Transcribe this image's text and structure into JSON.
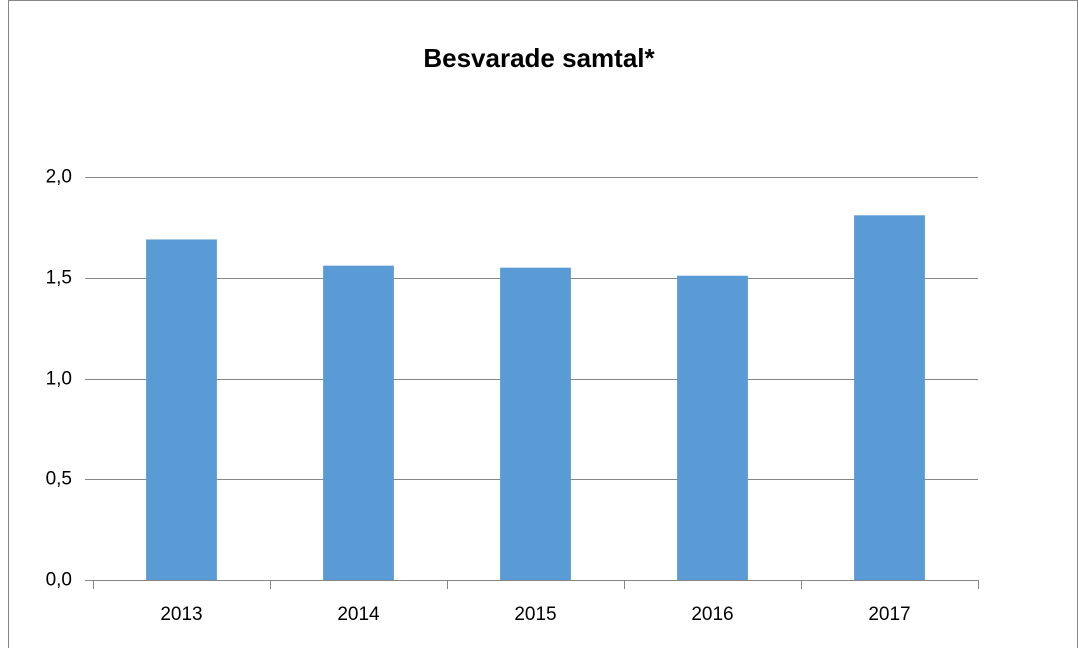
{
  "chart_data": {
    "type": "bar",
    "title": "Besvarade samtal*",
    "categories": [
      "2013",
      "2014",
      "2015",
      "2016",
      "2017"
    ],
    "values": [
      1.69,
      1.56,
      1.55,
      1.51,
      1.81
    ],
    "color": "#5b9bd5",
    "ylim": [
      0,
      2
    ],
    "yticks": [
      {
        "value": 0,
        "label": "0,0"
      },
      {
        "value": 0.5,
        "label": "0,5"
      },
      {
        "value": 1,
        "label": "1,0"
      },
      {
        "value": 1.5,
        "label": "1,5"
      },
      {
        "value": 2,
        "label": "2,0"
      }
    ],
    "grid": true
  }
}
